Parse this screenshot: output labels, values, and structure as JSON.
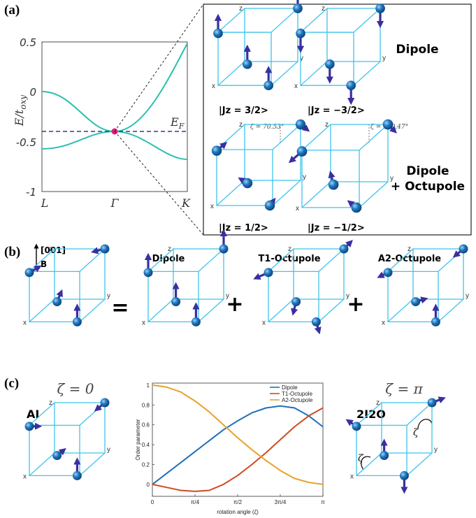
{
  "panel_labels": {
    "a": "(a)",
    "b": "(b)",
    "c": "(c)"
  },
  "band_plot": {
    "ylabel_main": "E/t",
    "ylabel_sub": "oxy",
    "yticks": [
      "0.5",
      "0",
      "-0.5",
      "-1"
    ],
    "xticks": [
      "L",
      "Γ",
      "K"
    ],
    "fermi_label_main": "E",
    "fermi_label_sub": "F",
    "line_color": "#2bbfae",
    "fermi_color": "#2a3f8f",
    "point_color": "#e0207a"
  },
  "states": {
    "dipole_title": "Dipole",
    "dipole_octupole_line1": "Dipole",
    "dipole_octupole_line2": "+ Octupole",
    "kets": [
      "|Jz = 3/2>",
      "|Jz = −3/2>",
      "|Jz = 1/2>",
      "|Jz = −1/2>"
    ],
    "zeta_angles": [
      "ζ = 70.53°",
      "ζ = 109.47°"
    ]
  },
  "decomposition": {
    "direction": "[001]",
    "field": "B",
    "equals": "=",
    "plus": "+",
    "titles": [
      "Dipole",
      "T1-Octupole",
      "A2-Octupole"
    ]
  },
  "axis_letters": {
    "x": "x",
    "y": "y",
    "z": "z"
  },
  "phases": {
    "left_zeta": "ζ = 0",
    "left_name": "AI",
    "right_zeta": "ζ = π",
    "right_name": "2I2O",
    "zeta_symbol": "ζ"
  },
  "chart_data": {
    "type": "line",
    "xlabel": "rotation angle (ζ)",
    "ylabel": "Order parameter",
    "xlim": [
      0,
      3.1416
    ],
    "ylim": [
      0,
      1
    ],
    "xtick_labels": [
      "0",
      "π/4",
      "π/2",
      "3π/4",
      "π"
    ],
    "xtick_values": [
      0,
      0.7854,
      1.5708,
      2.3562,
      3.1416
    ],
    "ytick_labels": [
      "0",
      "0.2",
      "0.4",
      "0.6",
      "0.8",
      "1"
    ],
    "ytick_values": [
      0,
      0.2,
      0.4,
      0.6,
      0.8,
      1
    ],
    "legend_position": "top-right",
    "grid": false,
    "x": [
      0,
      0.2618,
      0.5236,
      0.7854,
      1.0472,
      1.309,
      1.5708,
      1.8326,
      2.0944,
      2.3562,
      2.618,
      2.8798,
      3.1416
    ],
    "series": [
      {
        "name": "Dipole",
        "color": "#1f6fb8",
        "values": [
          0,
          0.11,
          0.22,
          0.33,
          0.44,
          0.55,
          0.64,
          0.72,
          0.77,
          0.79,
          0.77,
          0.69,
          0.58
        ]
      },
      {
        "name": "T1-Octupole",
        "color": "#cf4a1f",
        "values": [
          0,
          -0.03,
          -0.06,
          -0.07,
          -0.06,
          0,
          0.09,
          0.2,
          0.32,
          0.45,
          0.58,
          0.69,
          0.77
        ]
      },
      {
        "name": "A2-Octupole",
        "color": "#e7a32b",
        "values": [
          1,
          0.98,
          0.93,
          0.84,
          0.73,
          0.6,
          0.47,
          0.35,
          0.24,
          0.14,
          0.06,
          0.02,
          0
        ]
      }
    ]
  }
}
